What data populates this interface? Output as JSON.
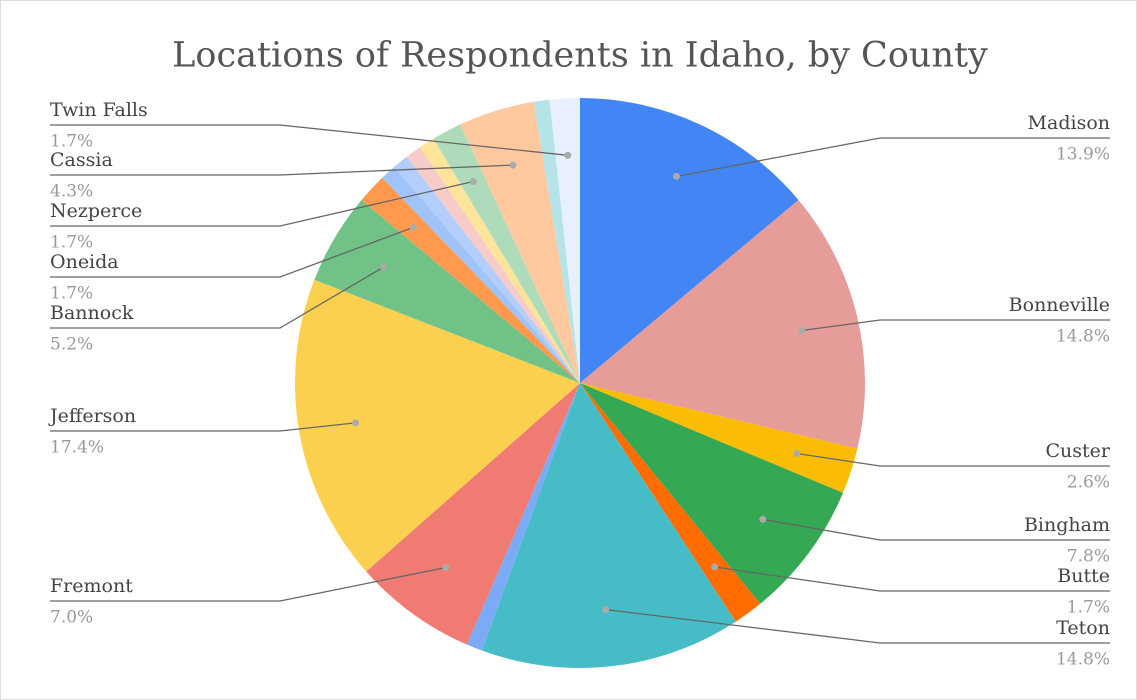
{
  "chart_data": {
    "type": "pie",
    "title": "Locations of Respondents in Idaho, by County",
    "categories": [
      "Madison",
      "Bonneville",
      "Custer",
      "Bingham",
      "Butte",
      "Teton",
      null,
      "Fremont",
      "Jefferson",
      "Bannock",
      "Oneida",
      null,
      null,
      null,
      null,
      "Nezperce",
      "Cassia",
      null,
      "Twin Falls"
    ],
    "values": [
      13.9,
      14.8,
      2.6,
      7.8,
      1.7,
      14.8,
      0.9,
      7.0,
      17.4,
      5.2,
      1.7,
      0.9,
      0.9,
      0.9,
      0.9,
      1.7,
      4.3,
      0.9,
      1.7
    ],
    "value_labels": [
      "13.9%",
      "14.8%",
      "2.6%",
      "7.8%",
      "1.7%",
      "14.8%",
      null,
      "7.0%",
      "17.4%",
      "5.2%",
      "1.7%",
      null,
      null,
      null,
      null,
      "1.7%",
      "4.3%",
      null,
      "1.7%"
    ],
    "colors": [
      "#4285f4",
      "#e69c98",
      "#fbbc04",
      "#34a853",
      "#ff6d01",
      "#46bdc6",
      "#7baaf7",
      "#f07b72",
      "#fcd04f",
      "#71c287",
      "#ff994d",
      "#a0c3fa",
      "#b3cefb",
      "#f7cbc8",
      "#fde49b",
      "#aedcba",
      "#ffc9a0",
      "#b5e4e8",
      "#e8f0fe"
    ]
  }
}
